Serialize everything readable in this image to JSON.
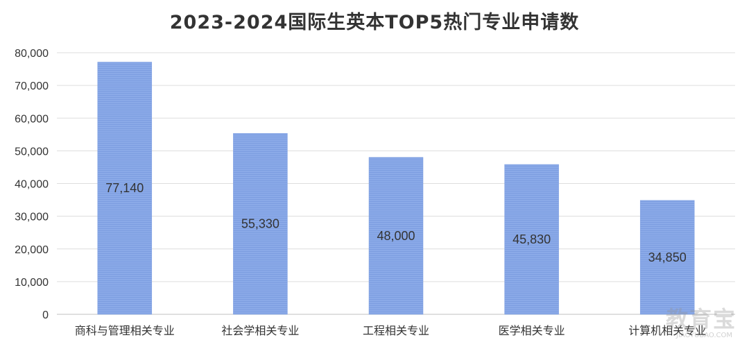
{
  "chart_data": {
    "type": "bar",
    "title": "2023-2024国际生英本TOP5热门专业申请数",
    "categories": [
      "商科与管理相关专业",
      "社会学相关专业",
      "工程相关专业",
      "医学相关专业",
      "计算机相关专业"
    ],
    "values": [
      77140,
      55330,
      48000,
      45830,
      34850
    ],
    "data_labels": [
      "77,140",
      "55,330",
      "48,000",
      "45,830",
      "34,850"
    ],
    "y_ticks": [
      "0",
      "10,000",
      "20,000",
      "30,000",
      "40,000",
      "50,000",
      "60,000",
      "70,000",
      "80,000"
    ],
    "ylim": [
      0,
      80000
    ],
    "grid": true,
    "bar_color": "#86A7E8",
    "xlabel": "",
    "ylabel": ""
  },
  "watermark": {
    "text": "教育宝",
    "sub": "JIAOYUBAO.COM"
  }
}
